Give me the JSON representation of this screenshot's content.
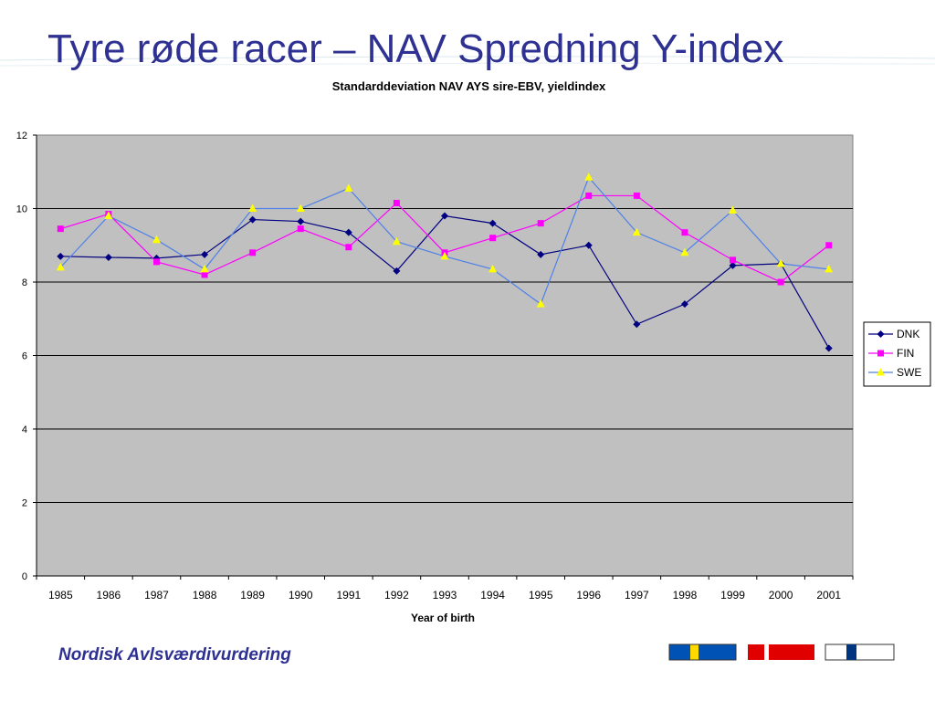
{
  "slide": {
    "title": "Tyre røde racer – NAV Spredning Y-index",
    "footer": "Nordisk Avlsværdivurdering"
  },
  "colors": {
    "title": "#2e3192",
    "plot_background": "#c0c0c0",
    "gridline": "#000000"
  },
  "chart_data": {
    "type": "line",
    "title": "Standarddeviation  NAV AYS sire-EBV, yieldindex",
    "xlabel": "Year of birth",
    "ylabel": "",
    "ylim": [
      0,
      12
    ],
    "yticks": [
      0,
      2,
      4,
      6,
      8,
      10,
      12
    ],
    "grid": true,
    "legend_position": "right",
    "categories": [
      "1985",
      "1986",
      "1987",
      "1988",
      "1989",
      "1990",
      "1991",
      "1992",
      "1993",
      "1994",
      "1995",
      "1996",
      "1997",
      "1998",
      "1999",
      "2000",
      "2001"
    ],
    "series": [
      {
        "name": "DNK",
        "color": "#000080",
        "marker": "diamond",
        "values": [
          8.7,
          8.67,
          8.65,
          8.75,
          9.7,
          9.65,
          9.35,
          8.3,
          9.8,
          9.6,
          8.75,
          9.0,
          6.85,
          7.4,
          8.45,
          8.5,
          6.2
        ]
      },
      {
        "name": "FIN",
        "color": "#ff00ff",
        "marker": "square",
        "values": [
          9.45,
          9.85,
          8.55,
          8.2,
          8.8,
          9.45,
          8.95,
          10.15,
          8.8,
          9.2,
          9.6,
          10.35,
          10.35,
          9.35,
          8.6,
          8.0,
          9.0
        ]
      },
      {
        "name": "SWE",
        "color": "#4f81e8",
        "marker_color": "#ffff00",
        "marker": "triangle",
        "values": [
          8.4,
          9.8,
          9.15,
          8.35,
          10.0,
          10.0,
          10.55,
          9.1,
          8.7,
          8.35,
          7.4,
          10.85,
          9.35,
          8.8,
          9.95,
          8.5,
          8.35
        ]
      }
    ]
  },
  "flags": [
    {
      "name": "sweden-flag",
      "colors": [
        "#0052b4",
        "#ffda00"
      ]
    },
    {
      "name": "denmark-flag",
      "colors": [
        "#e00000",
        "#ffffff"
      ]
    },
    {
      "name": "finland-flag",
      "colors": [
        "#ffffff",
        "#003580"
      ]
    }
  ]
}
